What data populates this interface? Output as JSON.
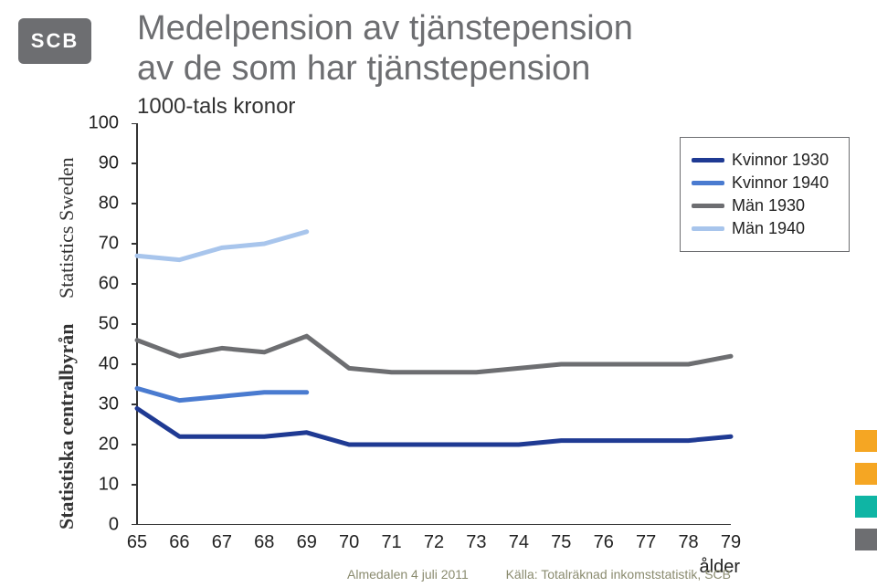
{
  "logo": {
    "text": "SCB"
  },
  "sidebar_text": {
    "line1": "Statistiska centralbyrån",
    "line2": "Statistics Sweden"
  },
  "title": {
    "line1": "Medelpension av tjänstepension",
    "line2": "av de som har tjänstepension"
  },
  "y_axis_title": "1000-tals kronor",
  "x_axis_title": "ålder",
  "footer_left": "Almedalen 4 juli 2011",
  "footer_right": "Källa: Totalräknad inkomststatistik, SCB",
  "chart": {
    "type": "line",
    "background_color": "#ffffff",
    "axis_color": "#333333",
    "axis_width": 2,
    "ylim": [
      0,
      100
    ],
    "ytick_step": 10,
    "xticks": [
      65,
      66,
      67,
      68,
      69,
      70,
      71,
      72,
      73,
      74,
      75,
      76,
      77,
      78,
      79
    ],
    "line_width": 5,
    "series": [
      {
        "name": "Kvinnor 1930",
        "color": "#1f3a93",
        "x": [
          65,
          66,
          67,
          68,
          69,
          70,
          71,
          72,
          73,
          74,
          75,
          76,
          77,
          78,
          79
        ],
        "y": [
          29,
          22,
          22,
          22,
          23,
          20,
          20,
          20,
          20,
          20,
          21,
          21,
          21,
          21,
          22
        ]
      },
      {
        "name": "Kvinnor 1940",
        "color": "#4a7bd0",
        "x": [
          65,
          66,
          67,
          68,
          69
        ],
        "y": [
          34,
          31,
          32,
          33,
          33
        ]
      },
      {
        "name": "Män 1930",
        "color": "#6d6e71",
        "x": [
          65,
          66,
          67,
          68,
          69,
          70,
          71,
          72,
          73,
          74,
          75,
          76,
          77,
          78,
          79
        ],
        "y": [
          46,
          42,
          44,
          43,
          47,
          39,
          38,
          38,
          38,
          39,
          40,
          40,
          40,
          40,
          42
        ]
      },
      {
        "name": "Män 1940",
        "color": "#a8c5ec",
        "x": [
          65,
          66,
          67,
          68,
          69
        ],
        "y": [
          67,
          66,
          69,
          70,
          73
        ]
      }
    ],
    "label_fontsize": 20,
    "tick_fontsize": 20
  },
  "side_block_colors": [
    "#f5a623",
    "#f5a623",
    "#0fb5a4",
    "#6d6e71"
  ]
}
